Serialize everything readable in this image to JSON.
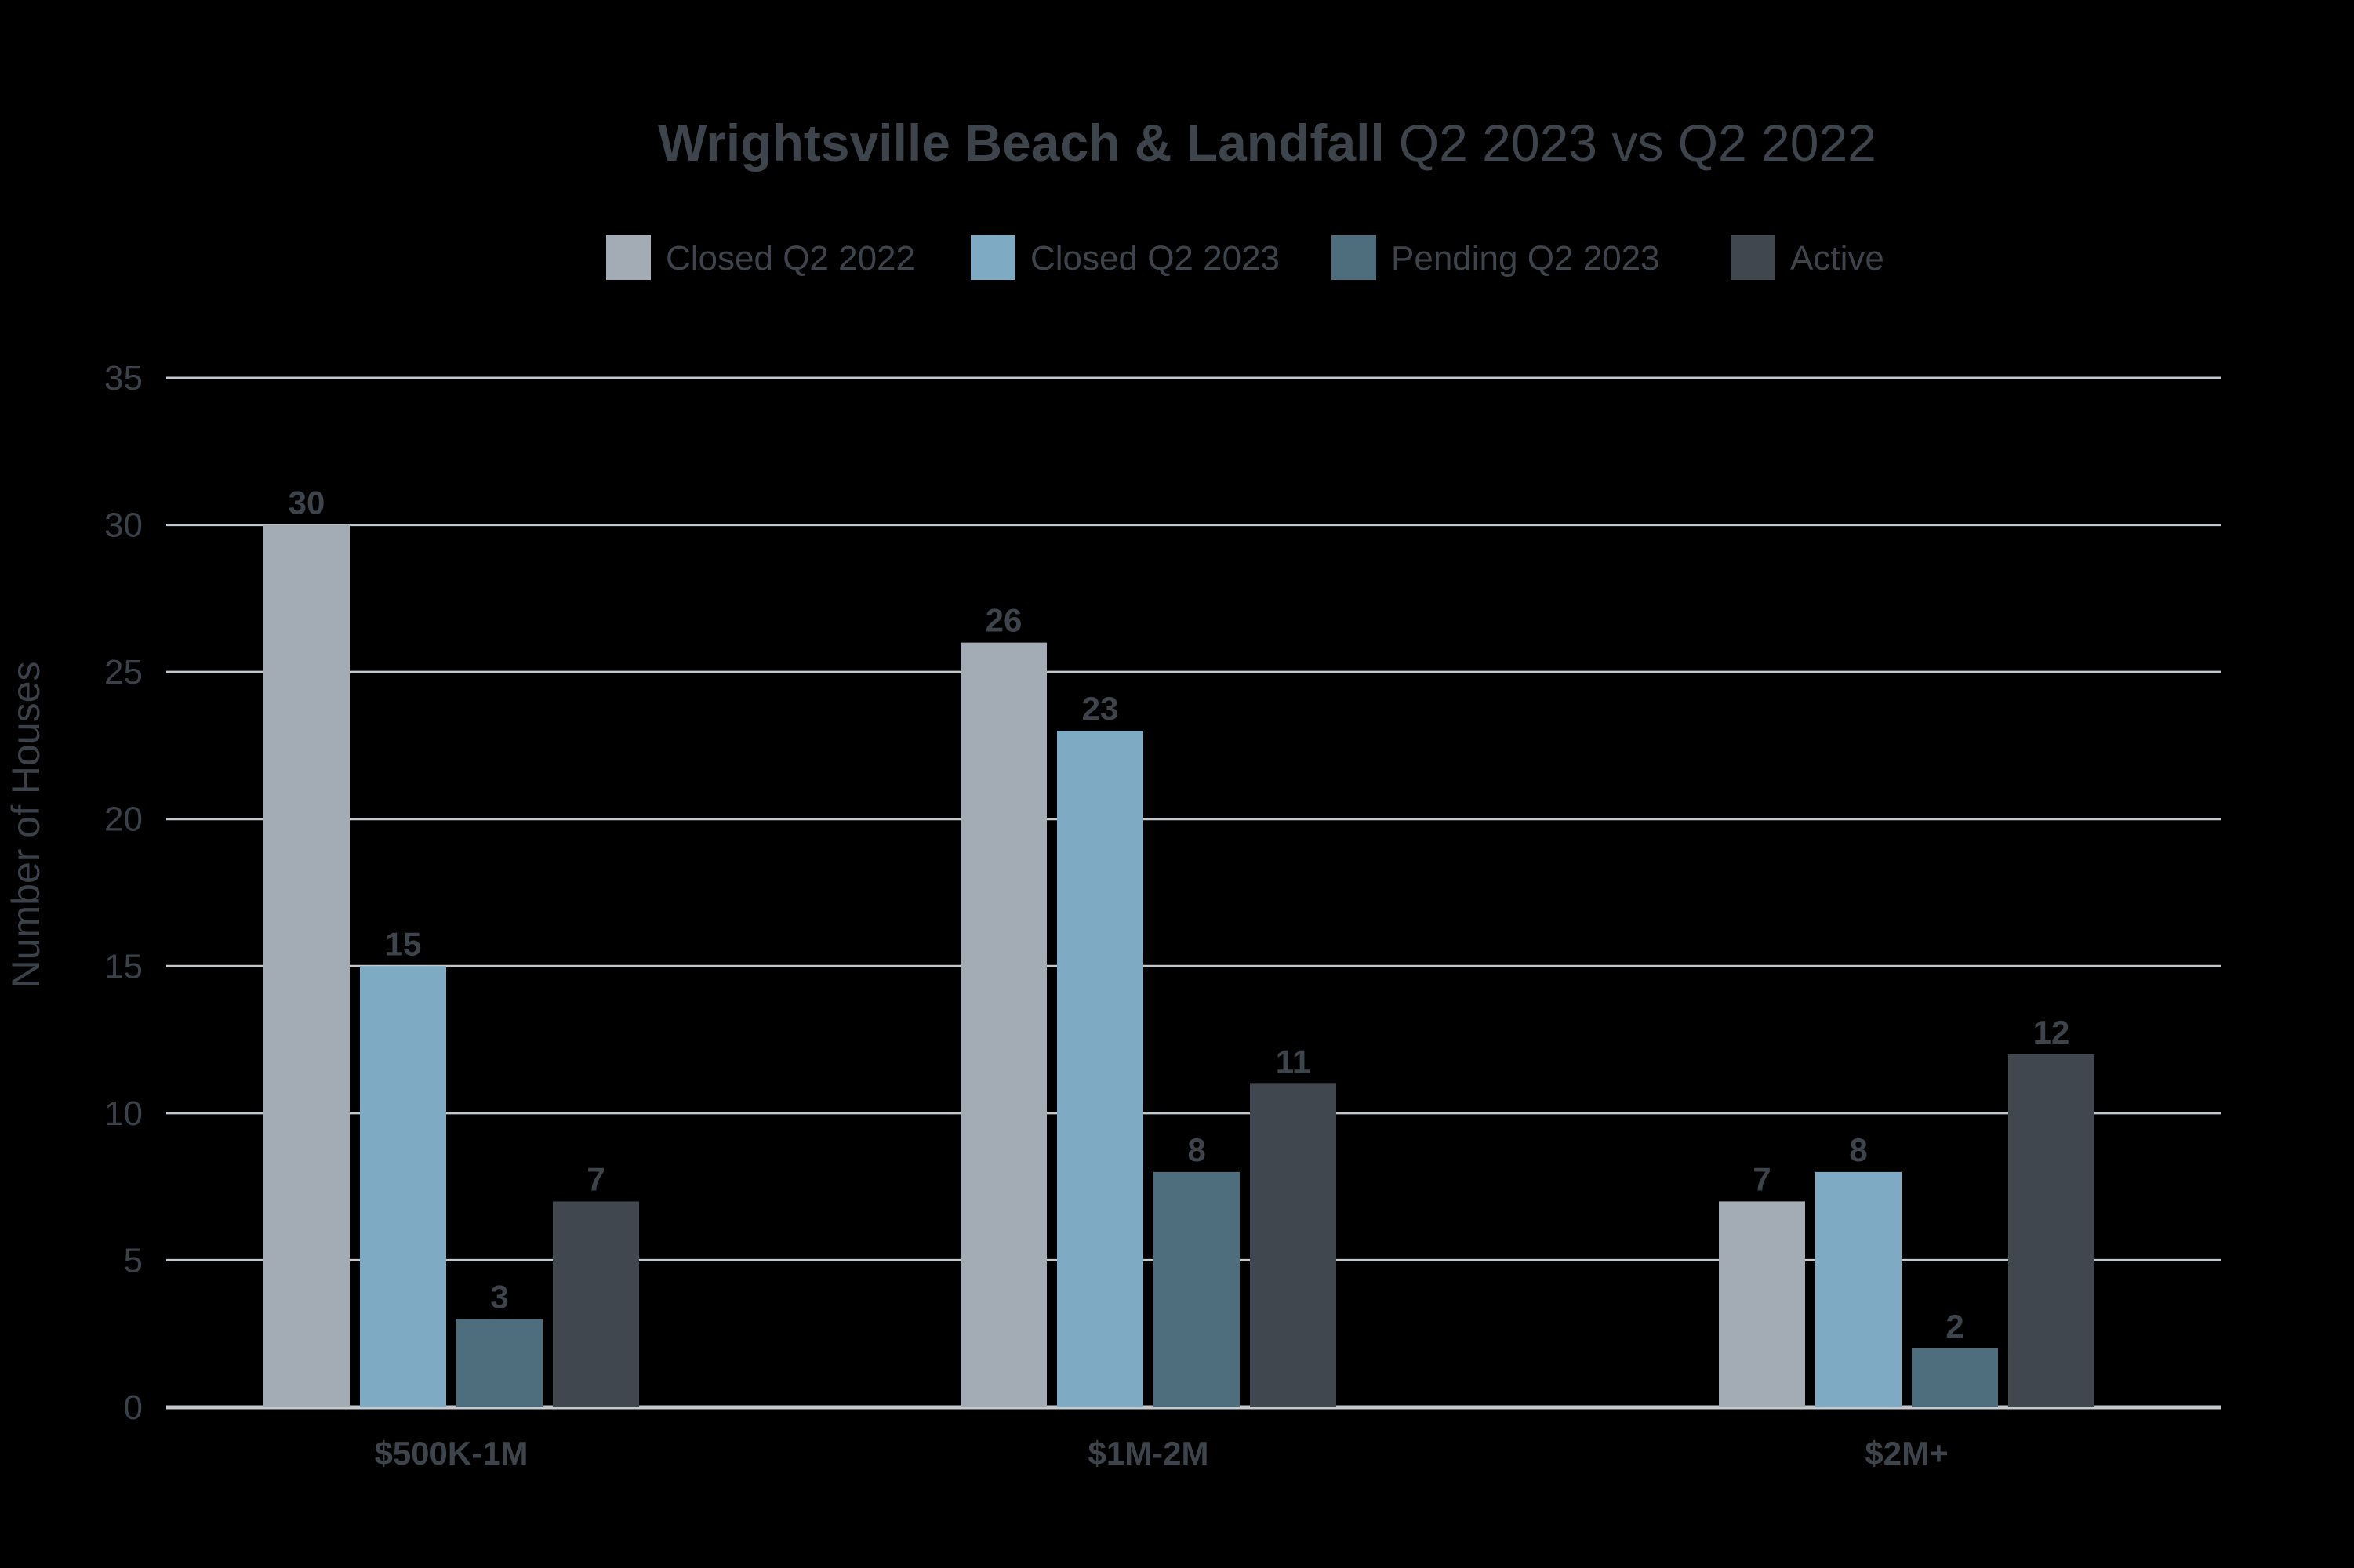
{
  "chart_data": {
    "type": "bar",
    "title": "Wrightsville Beach & Landfall",
    "subtitle": "Q2 2023 vs Q2 2022",
    "xlabel": "",
    "ylabel": "Number of Houses",
    "ylim": [
      0,
      35
    ],
    "yticks": [
      0,
      5,
      10,
      15,
      20,
      25,
      30,
      35
    ],
    "grid": true,
    "legend_position": "top",
    "categories": [
      "$500K-1M",
      "$1M-2M",
      "$2M+"
    ],
    "series": [
      {
        "name": "Closed Q2 2022",
        "color": "#a3acb4",
        "values": [
          30,
          26,
          7
        ]
      },
      {
        "name": "Closed Q2 2023",
        "color": "#7eaac4",
        "values": [
          15,
          23,
          8
        ]
      },
      {
        "name": "Pending Q2 2023",
        "color": "#4e6e7e",
        "values": [
          3,
          8,
          2
        ]
      },
      {
        "name": "Active",
        "color": "#40474e",
        "values": [
          7,
          11,
          12
        ]
      }
    ]
  },
  "colors": {
    "background": "#000000",
    "text": "#3d444b",
    "axis_text": "#3a4148",
    "grid": "#c4c9cd"
  }
}
